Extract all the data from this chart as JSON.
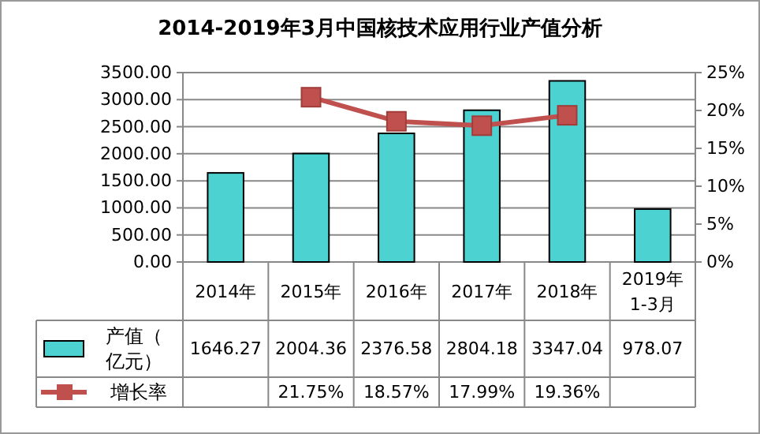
{
  "chart_data": {
    "type": "bar",
    "title": "2014-2019年3月中国核技术应用行业产值分析",
    "categories": [
      "2014年",
      "2015年",
      "2016年",
      "2017年",
      "2018年",
      "2019年\n1-3月"
    ],
    "series": [
      {
        "name": "产值（亿元）",
        "color": "#4dd2d2",
        "values": [
          1646.27,
          2004.36,
          2376.58,
          2804.18,
          3347.04,
          978.07
        ],
        "value_labels": [
          "1646.27",
          "2004.36",
          "2376.58",
          "2804.18",
          "3347.04",
          "978.07"
        ]
      },
      {
        "name": "增长率",
        "type": "line",
        "axis": "y2",
        "color": "#c0504d",
        "marker": "square",
        "values": [
          null,
          21.75,
          18.57,
          17.99,
          19.36,
          null
        ],
        "value_labels": [
          null,
          "21.75%",
          "18.57%",
          "17.99%",
          "19.36%",
          null
        ]
      }
    ],
    "ylim": [
      0,
      3500
    ],
    "yticks": [
      {
        "value": 0,
        "label": "0.00"
      },
      {
        "value": 500,
        "label": "500.00"
      },
      {
        "value": 1000,
        "label": "1000.00"
      },
      {
        "value": 1500,
        "label": "1500.00"
      },
      {
        "value": 2000,
        "label": "2000.00"
      },
      {
        "value": 2500,
        "label": "2500.00"
      },
      {
        "value": 3000,
        "label": "3000.00"
      },
      {
        "value": 3500,
        "label": "3500.00"
      }
    ],
    "y2lim": [
      0,
      25
    ],
    "y2ticks": [
      {
        "value": 0,
        "label": "0%"
      },
      {
        "value": 5,
        "label": "5%"
      },
      {
        "value": 10,
        "label": "10%"
      },
      {
        "value": 15,
        "label": "15%"
      },
      {
        "value": 20,
        "label": "20%"
      },
      {
        "value": 25,
        "label": "25%"
      }
    ],
    "grid": "y",
    "legend": "bottom"
  }
}
